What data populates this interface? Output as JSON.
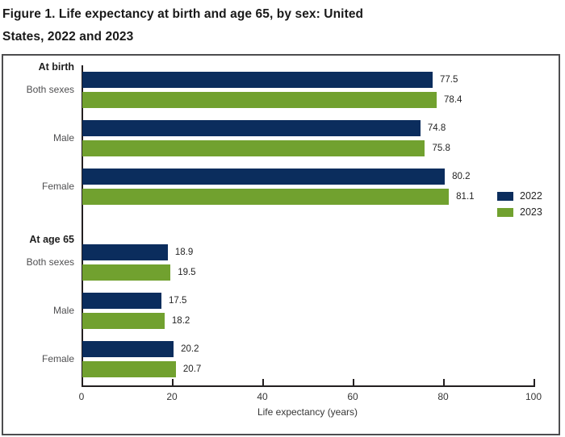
{
  "figure": {
    "title_line1": "Figure 1. Life expectancy at birth and age 65, by sex: United",
    "title_line2": "States, 2022 and 2023"
  },
  "chart_data": {
    "type": "bar",
    "orientation": "horizontal",
    "title": "Figure 1. Life expectancy at birth and age 65, by sex: United States, 2022 and 2023",
    "xlabel": "Life expectancy (years)",
    "xlim": [
      0,
      100
    ],
    "xticks": [
      0,
      20,
      40,
      60,
      80,
      100
    ],
    "grid": false,
    "value_labels_shown": true,
    "legend": {
      "position": "middle-right",
      "entries": [
        {
          "name": "2022",
          "color": "#0b2d5d"
        },
        {
          "name": "2023",
          "color": "#71a12f"
        }
      ]
    },
    "sections": [
      {
        "header": "At birth",
        "categories": [
          "Both sexes",
          "Male",
          "Female"
        ],
        "series": [
          {
            "name": "2022",
            "values": [
              77.5,
              74.8,
              80.2
            ]
          },
          {
            "name": "2023",
            "values": [
              78.4,
              75.8,
              81.1
            ]
          }
        ]
      },
      {
        "header": "At age 65",
        "categories": [
          "Both sexes",
          "Male",
          "Female"
        ],
        "series": [
          {
            "name": "2022",
            "values": [
              18.9,
              17.5,
              20.2
            ]
          },
          {
            "name": "2023",
            "values": [
              19.5,
              18.2,
              20.7
            ]
          }
        ]
      }
    ]
  }
}
